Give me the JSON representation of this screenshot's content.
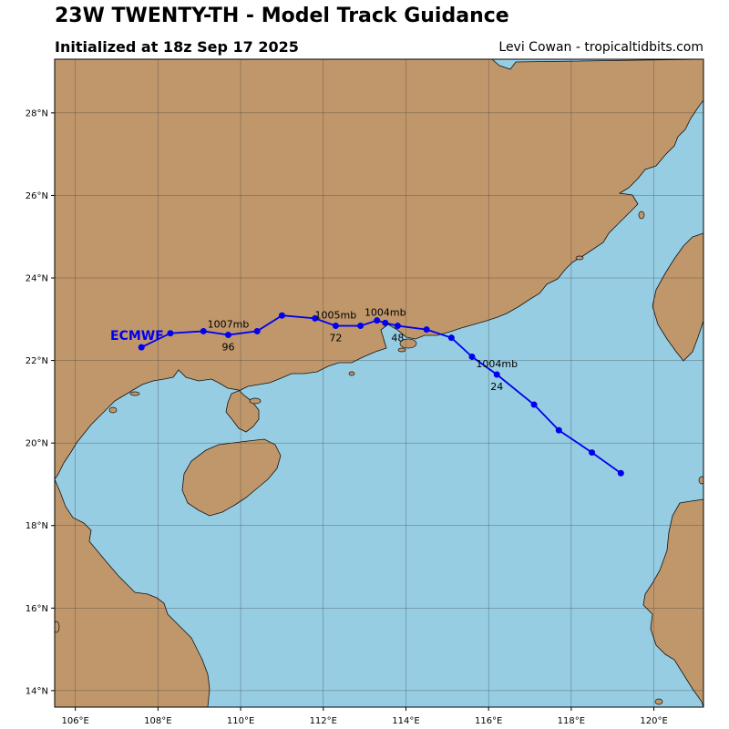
{
  "header": {
    "title": "23W TWENTY-TH - Model Track Guidance",
    "subtitle": "Initialized at 18z Sep 17 2025",
    "credit": "Levi Cowan - tropicaltidbits.com"
  },
  "colors": {
    "ocean": "#96cde3",
    "land": "#c0976b",
    "coast": "#111111",
    "grid": "#333333",
    "track": "#0000ee",
    "model_label": "#0000ee"
  },
  "map": {
    "lon_range": [
      105.5,
      121.2
    ],
    "lat_range": [
      13.6,
      29.3
    ],
    "lon_ticks": [
      {
        "value": 106,
        "label": "106°E"
      },
      {
        "value": 108,
        "label": "108°E"
      },
      {
        "value": 110,
        "label": "110°E"
      },
      {
        "value": 112,
        "label": "112°E"
      },
      {
        "value": 114,
        "label": "114°E"
      },
      {
        "value": 116,
        "label": "116°E"
      },
      {
        "value": 118,
        "label": "118°E"
      },
      {
        "value": 120,
        "label": "120°E"
      }
    ],
    "lat_ticks": [
      {
        "value": 14,
        "label": "14°N"
      },
      {
        "value": 16,
        "label": "16°N"
      },
      {
        "value": 18,
        "label": "18°N"
      },
      {
        "value": 20,
        "label": "20°N"
      },
      {
        "value": 22,
        "label": "22°N"
      },
      {
        "value": 24,
        "label": "24°N"
      },
      {
        "value": 26,
        "label": "26°N"
      },
      {
        "value": 28,
        "label": "28°N"
      }
    ]
  },
  "chart_data": {
    "type": "line",
    "model": "ECMWF",
    "track": [
      {
        "lon": 119.2,
        "lat": 19.27
      },
      {
        "lon": 118.5,
        "lat": 19.77
      },
      {
        "lon": 117.7,
        "lat": 20.31
      },
      {
        "lon": 117.1,
        "lat": 20.93
      },
      {
        "lon": 116.2,
        "lat": 21.66
      },
      {
        "lon": 115.6,
        "lat": 22.09
      },
      {
        "lon": 115.1,
        "lat": 22.55
      },
      {
        "lon": 114.5,
        "lat": 22.75
      },
      {
        "lon": 113.8,
        "lat": 22.84
      },
      {
        "lon": 113.5,
        "lat": 22.91
      },
      {
        "lon": 113.3,
        "lat": 22.97
      },
      {
        "lon": 112.9,
        "lat": 22.84
      },
      {
        "lon": 112.3,
        "lat": 22.84
      },
      {
        "lon": 111.8,
        "lat": 23.02
      },
      {
        "lon": 111.0,
        "lat": 23.09
      },
      {
        "lon": 110.4,
        "lat": 22.71
      },
      {
        "lon": 109.7,
        "lat": 22.62
      },
      {
        "lon": 109.1,
        "lat": 22.71
      },
      {
        "lon": 108.3,
        "lat": 22.66
      },
      {
        "lon": 107.6,
        "lat": 22.32
      }
    ],
    "hour_labels": [
      {
        "text": "24",
        "lon": 116.2,
        "lat": 21.66
      },
      {
        "text": "48",
        "lon": 113.8,
        "lat": 22.84
      },
      {
        "text": "72",
        "lon": 112.3,
        "lat": 22.84
      },
      {
        "text": "96",
        "lon": 109.7,
        "lat": 22.62
      }
    ],
    "pressure_labels": [
      {
        "text": "1004mb",
        "lon": 116.2,
        "lat": 21.66
      },
      {
        "text": "1004mb",
        "lon": 113.5,
        "lat": 22.91
      },
      {
        "text": "1005mb",
        "lon": 112.3,
        "lat": 22.84
      },
      {
        "text": "1007mb",
        "lon": 109.7,
        "lat": 22.62
      }
    ]
  }
}
